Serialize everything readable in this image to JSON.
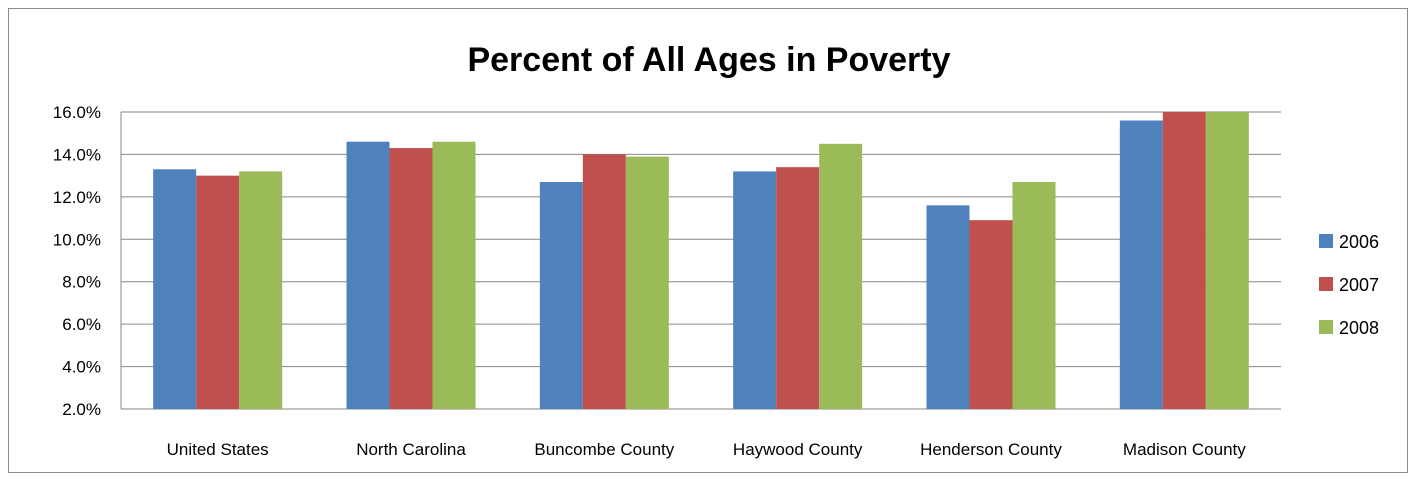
{
  "chart_data": {
    "type": "bar",
    "title": "Percent of All Ages in Poverty",
    "xlabel": "",
    "ylabel": "",
    "categories": [
      "United States",
      "North Carolina",
      "Buncombe County",
      "Haywood County",
      "Henderson County",
      "Madison County"
    ],
    "series": [
      {
        "name": "2006",
        "color": "#4f81bd",
        "values": [
          13.3,
          14.6,
          12.7,
          13.2,
          11.6,
          15.6
        ]
      },
      {
        "name": "2007",
        "color": "#c0504d",
        "values": [
          13.0,
          14.3,
          14.0,
          13.4,
          10.9,
          16.0
        ]
      },
      {
        "name": "2008",
        "color": "#9bbb59",
        "values": [
          13.2,
          14.6,
          13.9,
          14.5,
          12.7,
          16.0
        ]
      }
    ],
    "ylim": [
      2,
      16
    ],
    "yticks": [
      2,
      4,
      6,
      8,
      10,
      12,
      14,
      16
    ],
    "ytick_labels": [
      "2.0%",
      "4.0%",
      "6.0%",
      "8.0%",
      "10.0%",
      "12.0%",
      "14.0%",
      "16.0%"
    ],
    "grid": true,
    "legend_position": "right",
    "gridline_color": "#868686"
  }
}
